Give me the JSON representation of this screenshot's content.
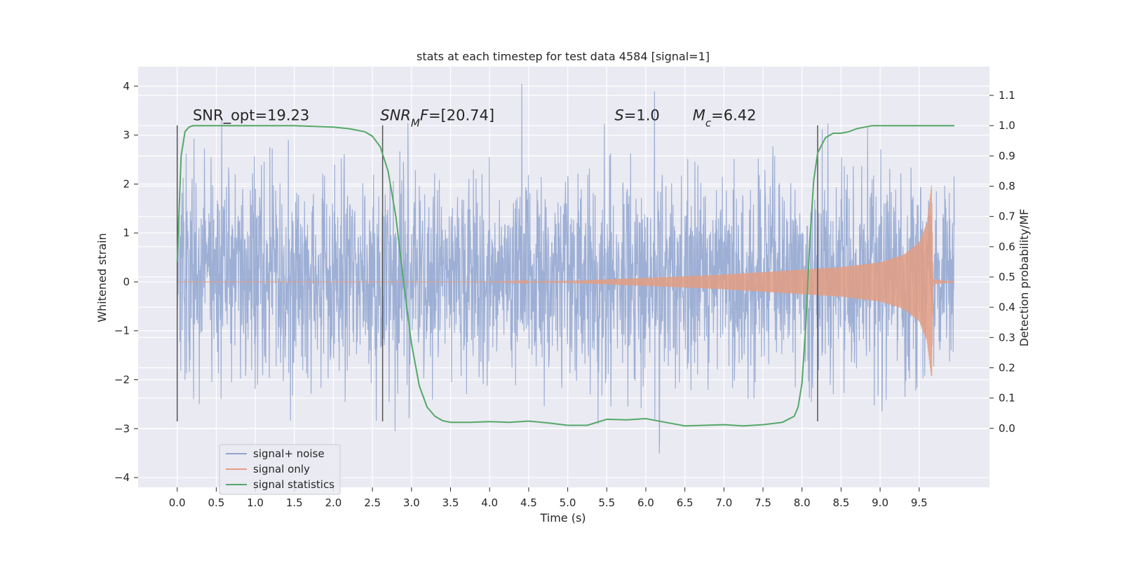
{
  "chart_data": {
    "type": "line",
    "title": "stats at each timestep for test data 4584 [signal=1]",
    "xlabel": "Time (s)",
    "ylabel": "Whitened strain",
    "y2label": "Detection probability/MF",
    "xlim": [
      -0.5,
      10.4
    ],
    "ylim": [
      -4.2,
      4.4
    ],
    "y2lim": [
      -0.195,
      1.195
    ],
    "x_ticks": [
      0.0,
      0.5,
      1.0,
      1.5,
      2.0,
      2.5,
      3.0,
      3.5,
      4.0,
      4.5,
      5.0,
      5.5,
      6.0,
      6.5,
      7.0,
      7.5,
      8.0,
      8.5,
      9.0,
      9.5
    ],
    "x_tick_labels": [
      "0.0",
      "0.5",
      "1.0",
      "1.5",
      "2.0",
      "2.5",
      "3.0",
      "3.5",
      "4.0",
      "4.5",
      "5.0",
      "5.5",
      "6.0",
      "6.5",
      "7.0",
      "7.5",
      "8.0",
      "8.5",
      "9.0",
      "9.5"
    ],
    "y_ticks": [
      -4,
      -3,
      -2,
      -1,
      0,
      1,
      2,
      3,
      4
    ],
    "y_tick_labels": [
      "−4",
      "−3",
      "−2",
      "−1",
      "0",
      "1",
      "2",
      "3",
      "4"
    ],
    "y2_ticks": [
      0.0,
      0.1,
      0.2,
      0.3,
      0.4,
      0.5,
      0.6,
      0.7,
      0.8,
      0.9,
      1.0,
      1.1
    ],
    "y2_tick_labels": [
      "0.0",
      "0.1",
      "0.2",
      "0.3",
      "0.4",
      "0.5",
      "0.6",
      "0.7",
      "0.8",
      "0.9",
      "1.0",
      "1.1"
    ],
    "grid": true,
    "legend_position": "bottom-left",
    "vertical_lines_x": [
      0.0,
      2.63,
      8.2
    ],
    "annotations": [
      {
        "x": 0.2,
        "y": 3.3,
        "parts": [
          {
            "text": "SNR_opt=19.23"
          }
        ]
      },
      {
        "x": 2.6,
        "y": 3.3,
        "parts": [
          {
            "text": "SNR",
            "italic": true
          },
          {
            "text": "M",
            "italic": true,
            "sub": true
          },
          {
            "text": "F",
            "italic": true
          },
          {
            "text": "=[20.74]"
          }
        ]
      },
      {
        "x": 5.6,
        "y": 3.3,
        "parts": [
          {
            "text": "S",
            "italic": true
          },
          {
            "text": "=1.0"
          }
        ]
      },
      {
        "x": 6.6,
        "y": 3.3,
        "parts": [
          {
            "text": "M",
            "italic": true
          },
          {
            "text": "c",
            "italic": true,
            "sub": true
          },
          {
            "text": "=6.42"
          }
        ]
      }
    ],
    "series": [
      {
        "name": "signal+ noise",
        "axis": "left",
        "color": "#8fa5d0",
        "x_range": [
          0.0,
          9.95
        ],
        "noise_sigma": 1.0,
        "y_min": -3.6,
        "y_max": 4.05
      },
      {
        "name": "signal only",
        "axis": "left",
        "color": "#e39d83",
        "x_range": [
          0.0,
          9.95
        ],
        "envelope": {
          "x": [
            0.0,
            4.0,
            5.0,
            6.0,
            7.0,
            8.0,
            8.5,
            9.0,
            9.3,
            9.5,
            9.6,
            9.66,
            9.68,
            9.95
          ],
          "amplitude": [
            0.0,
            0.0,
            0.02,
            0.08,
            0.15,
            0.25,
            0.3,
            0.4,
            0.55,
            0.8,
            1.2,
            2.0,
            0.05,
            0.0
          ]
        }
      },
      {
        "name": "signal statistics",
        "axis": "right",
        "color": "#55a868",
        "x": [
          0.0,
          0.05,
          0.1,
          0.15,
          0.2,
          0.3,
          0.5,
          1.0,
          1.5,
          2.0,
          2.2,
          2.4,
          2.5,
          2.6,
          2.7,
          2.8,
          2.9,
          3.0,
          3.1,
          3.2,
          3.3,
          3.4,
          3.5,
          3.75,
          4.0,
          4.25,
          4.5,
          4.75,
          5.0,
          5.25,
          5.5,
          5.75,
          6.0,
          6.25,
          6.5,
          6.75,
          7.0,
          7.25,
          7.5,
          7.75,
          7.9,
          7.95,
          8.0,
          8.05,
          8.1,
          8.15,
          8.2,
          8.3,
          8.4,
          8.5,
          8.6,
          8.7,
          8.8,
          8.9,
          9.0,
          9.5,
          9.95
        ],
        "y": [
          0.55,
          0.9,
          0.98,
          0.995,
          1.0,
          1.0,
          1.0,
          1.0,
          1.0,
          0.995,
          0.99,
          0.98,
          0.965,
          0.93,
          0.85,
          0.7,
          0.48,
          0.28,
          0.14,
          0.07,
          0.04,
          0.025,
          0.02,
          0.02,
          0.022,
          0.02,
          0.024,
          0.018,
          0.01,
          0.01,
          0.03,
          0.028,
          0.032,
          0.02,
          0.008,
          0.01,
          0.012,
          0.008,
          0.012,
          0.02,
          0.04,
          0.07,
          0.15,
          0.35,
          0.62,
          0.82,
          0.91,
          0.96,
          0.975,
          0.975,
          0.98,
          0.99,
          0.995,
          1.0,
          1.0,
          1.0,
          1.0
        ]
      }
    ]
  }
}
